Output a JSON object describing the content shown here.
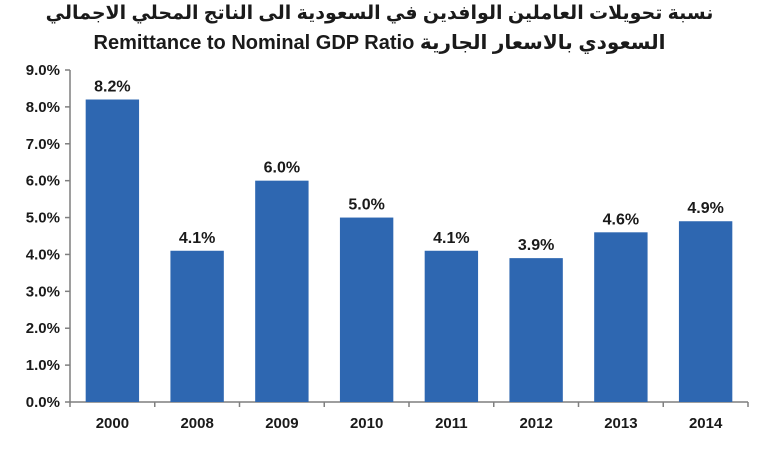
{
  "chart_data": {
    "type": "bar",
    "title_ar_line1": "نسبة تحويلات العاملين الوافدين في السعودية الى الناتج المحلي الاجمالي",
    "title_line2": "Remittance to Nominal GDP Ratio السعودي بالاسعار الجارية",
    "categories": [
      "2000",
      "2008",
      "2009",
      "2010",
      "2011",
      "2012",
      "2013",
      "2014"
    ],
    "values": [
      8.2,
      4.1,
      6.0,
      5.0,
      4.1,
      3.9,
      4.6,
      4.9
    ],
    "data_labels": [
      "8.2%",
      "4.1%",
      "6.0%",
      "5.0%",
      "4.1%",
      "3.9%",
      "4.6%",
      "4.9%"
    ],
    "ylim": [
      0,
      9
    ],
    "y_ticks": [
      "0.0%",
      "1.0%",
      "2.0%",
      "3.0%",
      "4.0%",
      "5.0%",
      "6.0%",
      "7.0%",
      "8.0%",
      "9.0%"
    ],
    "xlabel": "",
    "ylabel": "",
    "grid": false,
    "legend": "none",
    "bar_color": "#2e67b1",
    "axis_color": "#7f7f7f"
  }
}
